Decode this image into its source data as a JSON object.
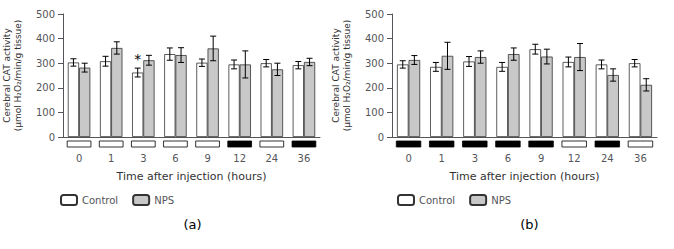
{
  "chart_data": [
    {
      "type": "bar",
      "title": "(a)",
      "xlabel": "Time after injection (hours)",
      "ylabel": "Cerebral CAT activity\n(μmol H₂O₂/min/g tissue)",
      "categories": [
        "0",
        "1",
        "3",
        "6",
        "9",
        "12",
        "24",
        "36"
      ],
      "series": [
        {
          "name": "Control",
          "color": "#ffffff",
          "values": [
            303,
            308,
            262,
            337,
            302,
            295,
            300,
            292
          ],
          "errors": [
            15,
            20,
            18,
            25,
            15,
            18,
            15,
            15
          ]
        },
        {
          "name": "NPS",
          "color": "#c8c8c8",
          "values": [
            282,
            362,
            312,
            333,
            360,
            295,
            275,
            305
          ],
          "errors": [
            18,
            25,
            20,
            30,
            50,
            55,
            25,
            15
          ]
        }
      ],
      "ylim": [
        0,
        500
      ],
      "yticks": [
        0,
        100,
        200,
        300,
        400,
        500
      ],
      "grid": false,
      "legend": "lower left",
      "strip_colors": [
        "white",
        "white",
        "white",
        "white",
        "white",
        "black",
        "white",
        "black"
      ],
      "annotations": [
        {
          "text": "*",
          "category": "3",
          "series": "Control"
        }
      ]
    },
    {
      "type": "bar",
      "title": "(b)",
      "xlabel": "Time after injection (hours)",
      "ylabel": "Cerebral CAT activity\n(μmol H₂O₂/min/g tissue)",
      "categories": [
        "0",
        "1",
        "3",
        "6",
        "9",
        "12",
        "24",
        "36"
      ],
      "series": [
        {
          "name": "Control",
          "color": "#ffffff",
          "values": [
            295,
            285,
            307,
            285,
            357,
            305,
            295,
            300
          ],
          "errors": [
            15,
            18,
            20,
            18,
            20,
            20,
            18,
            15
          ]
        },
        {
          "name": "NPS",
          "color": "#c8c8c8",
          "values": [
            313,
            330,
            325,
            337,
            327,
            325,
            252,
            212
          ],
          "errors": [
            18,
            55,
            25,
            25,
            30,
            55,
            25,
            25
          ]
        }
      ],
      "ylim": [
        0,
        500
      ],
      "yticks": [
        0,
        100,
        200,
        300,
        400,
        500
      ],
      "grid": false,
      "legend": "lower left",
      "strip_colors": [
        "black",
        "black",
        "black",
        "black",
        "black",
        "white",
        "black",
        "white"
      ]
    }
  ]
}
